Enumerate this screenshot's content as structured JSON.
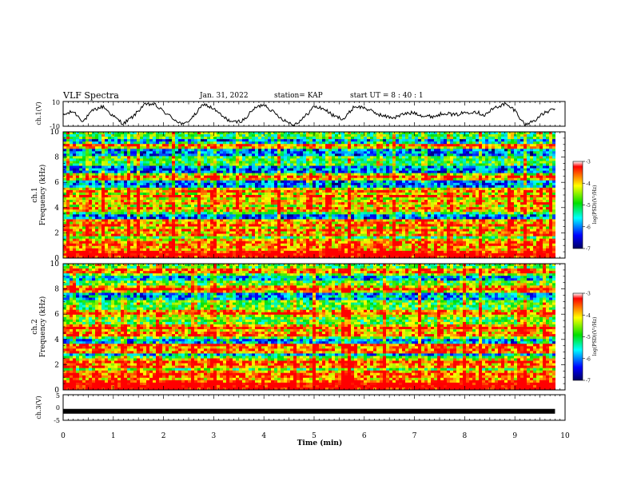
{
  "header": {
    "title": "VLF Spectra",
    "date": "Jan. 31, 2022",
    "station": "station= KAP",
    "start": "start  UT =  8 : 40 : 1"
  },
  "panels": {
    "ch1_wave_label": "ch.1(V)",
    "ch1_spec_label_a": "ch.1",
    "ch1_spec_label_b": "Frequency (kHz)",
    "ch2_spec_label_a": "ch.2",
    "ch2_spec_label_b": "Frequency (kHz)",
    "ch3_label": "ch.3(V)",
    "xlabel": "Time (min)"
  },
  "colorbar": {
    "label": "log(PSD)(V²/Hz)",
    "ticks": [
      "-3",
      "-4",
      "-5",
      "-6",
      "-7"
    ],
    "colors": [
      "#ff0000",
      "#ffff00",
      "#00e000",
      "#00ffff",
      "#0000ff",
      "#000060"
    ]
  },
  "chart_data": [
    {
      "type": "line",
      "title": "VLF Spectra",
      "ylabel": "ch.1(V)",
      "xlabel": "Time (min)",
      "xlim": [
        0,
        10
      ],
      "ylim": [
        -10,
        10
      ],
      "yticks": [
        "10",
        "-10"
      ],
      "x": [
        0,
        0.2,
        0.4,
        0.6,
        0.8,
        1.0,
        1.2,
        1.4,
        1.6,
        1.8,
        2.0,
        2.2,
        2.4,
        2.6,
        2.8,
        3.0,
        3.2,
        3.4,
        3.6,
        3.8,
        4.0,
        4.2,
        4.4,
        4.6,
        4.8,
        5.0,
        5.2,
        5.4,
        5.6,
        5.8,
        6.0,
        6.2,
        6.4,
        6.6,
        6.8,
        7.0,
        7.2,
        7.4,
        7.6,
        7.8,
        8.0,
        8.2,
        8.4,
        8.6,
        8.8,
        9.0,
        9.2,
        9.4,
        9.6,
        9.8
      ],
      "y": [
        -1,
        2,
        -6,
        3,
        6,
        -2,
        -8,
        -2,
        7,
        8,
        2,
        -4,
        -9,
        -2,
        8,
        4,
        -3,
        -7,
        -5,
        4,
        8,
        1,
        -5,
        -9,
        -3,
        6,
        4,
        -2,
        -4,
        6,
        5,
        1,
        -2,
        -3,
        0,
        1,
        -2,
        -2,
        1,
        -1,
        1,
        2,
        -1,
        5,
        8,
        3,
        -9,
        -5,
        1,
        4
      ]
    },
    {
      "type": "heatmap",
      "ylabel": "Frequency (kHz)",
      "series_label": "ch.1",
      "xlim": [
        0,
        10
      ],
      "ylim": [
        0,
        10
      ],
      "xticks": [
        "0",
        "1",
        "2",
        "3",
        "4",
        "5",
        "6",
        "7",
        "8",
        "9",
        "10"
      ],
      "yticks": [
        "0",
        "2",
        "4",
        "6",
        "8",
        "10"
      ],
      "colorbar_range": [
        -7,
        -3
      ],
      "line_bands_khz": [
        0.2,
        0.3,
        0.6,
        0.8,
        1.1,
        1.3,
        1.9,
        2.2,
        2.6,
        2.9,
        3.9,
        4.4,
        4.9,
        5.3,
        6.4,
        8.9
      ],
      "vertical_bursts_min": [
        0.1,
        0.5,
        0.8,
        1.3,
        1.5,
        2.2,
        2.7,
        3.0,
        3.5,
        4.3,
        4.9,
        5.3,
        5.7,
        6.3,
        6.6,
        7.2,
        7.7,
        8.3,
        8.9,
        9.2,
        9.5,
        9.7
      ],
      "low_power_bands_khz": [
        [
          3.0,
          3.4
        ],
        [
          5.5,
          6.2
        ],
        [
          6.8,
          7.4
        ],
        [
          8.1,
          8.7
        ],
        [
          9.1,
          9.5
        ]
      ],
      "base_level": -5.0
    },
    {
      "type": "heatmap",
      "ylabel": "Frequency (kHz)",
      "series_label": "ch.2",
      "xlim": [
        0,
        10
      ],
      "ylim": [
        0,
        10
      ],
      "xticks": [
        "0",
        "1",
        "2",
        "3",
        "4",
        "5",
        "6",
        "7",
        "8",
        "9",
        "10"
      ],
      "yticks": [
        "0",
        "2",
        "4",
        "6",
        "8",
        "10"
      ],
      "colorbar_range": [
        -7,
        -3
      ],
      "line_bands_khz": [
        0.2,
        0.4,
        0.7,
        1.0,
        1.3,
        1.9,
        2.2,
        3.1,
        3.5,
        4.4,
        4.9,
        6.1,
        8.0,
        9.4
      ],
      "vertical_bursts_min": [
        0.2,
        0.7,
        1.2,
        1.5,
        1.9,
        2.6,
        3.0,
        3.3,
        4.6,
        5.0,
        5.6,
        5.7,
        6.4,
        7.1,
        7.5,
        8.0,
        8.3,
        9.1,
        9.2,
        9.6
      ],
      "low_power_bands_khz": [
        [
          2.6,
          2.9
        ],
        [
          3.7,
          4.0
        ],
        [
          7.2,
          7.6
        ],
        [
          8.6,
          9.0
        ]
      ],
      "base_level": -4.8
    },
    {
      "type": "line",
      "ylabel": "ch.3(V)",
      "xlabel": "Time (min)",
      "xlim": [
        0,
        10
      ],
      "ylim": [
        -5,
        5
      ],
      "yticks": [
        "5",
        "0",
        "-5"
      ],
      "xticks": [
        "0",
        "1",
        "2",
        "3",
        "4",
        "5",
        "6",
        "7",
        "8",
        "9",
        "10"
      ],
      "x": [
        0,
        9.8
      ],
      "y": [
        -1.5,
        -1.5
      ]
    }
  ]
}
